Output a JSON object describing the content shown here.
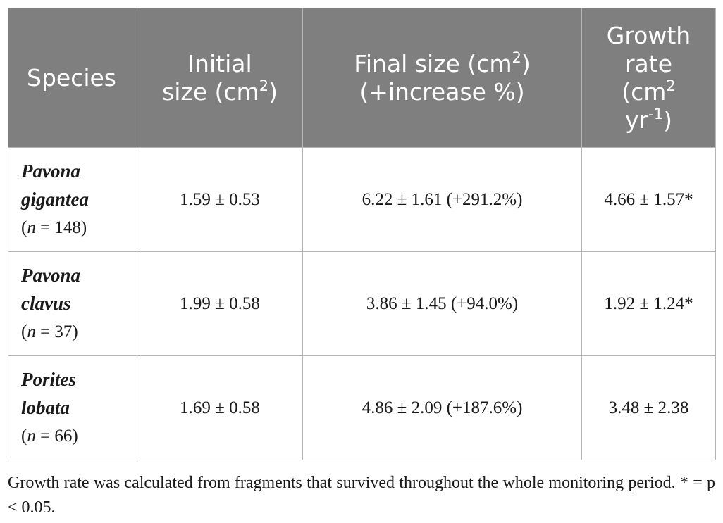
{
  "table": {
    "headers": {
      "species": "Species",
      "initial_line1": "Initial",
      "initial_line2": "size (cm",
      "initial_sup": "2",
      "initial_close": ")",
      "final_line1": "Final size (cm",
      "final_sup": "2",
      "final_close": ")",
      "final_line2": "(+increase %)",
      "growth_line1": "Growth",
      "growth_line2": "rate",
      "growth_line3": "(cm",
      "growth_sup1": "2",
      "growth_line4": "yr",
      "growth_sup2": "-1",
      "growth_close": ")"
    },
    "rows": [
      {
        "species_line1": "Pavona",
        "species_line2": "gigantea",
        "n_label": "n",
        "n_text": " = 148)",
        "n_open": "(",
        "initial": "1.59 ± 0.53",
        "final": "6.22 ± 1.61 (+291.2%)",
        "growth": "4.66 ± 1.57*"
      },
      {
        "species_line1": "Pavona",
        "species_line2": "clavus",
        "n_label": "n",
        "n_text": " = 37)",
        "n_open": "(",
        "initial": "1.99 ± 0.58",
        "final": "3.86 ± 1.45 (+94.0%)",
        "growth": "1.92 ± 1.24*"
      },
      {
        "species_line1": "Porites",
        "species_line2": "lobata",
        "n_label": "n",
        "n_text": " = 66)",
        "n_open": "(",
        "initial": "1.69 ± 0.58",
        "final": "4.86 ± 2.09 (+187.6%)",
        "growth": "3.48 ± 2.38"
      }
    ]
  },
  "footnote": "Growth rate was calculated from fragments that survived throughout the whole monitoring period. * = p < 0.05.",
  "colors": {
    "header_bg": "#7f7f7f",
    "header_text": "#ffffff",
    "border": "#b5b5b5"
  }
}
